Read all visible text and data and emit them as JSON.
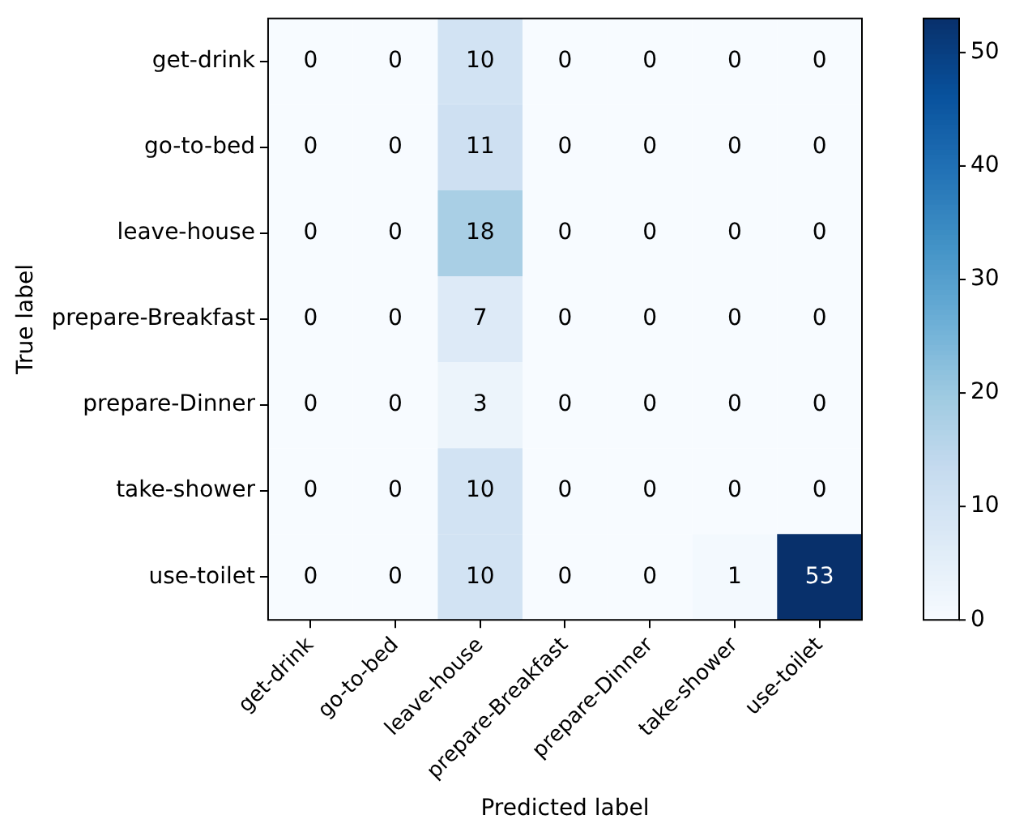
{
  "chart_data": {
    "type": "heatmap",
    "xlabel": "Predicted label",
    "ylabel": "True label",
    "categories": [
      "get-drink",
      "go-to-bed",
      "leave-house",
      "prepare-Breakfast",
      "prepare-Dinner",
      "take-shower",
      "use-toilet"
    ],
    "y_categories": [
      "get-drink",
      "go-to-bed",
      "leave-house",
      "prepare-Breakfast",
      "prepare-Dinner",
      "take-shower",
      "use-toilet"
    ],
    "cells": [
      [
        0,
        0,
        10,
        0,
        0,
        0,
        0
      ],
      [
        0,
        0,
        11,
        0,
        0,
        0,
        0
      ],
      [
        0,
        0,
        18,
        0,
        0,
        0,
        0
      ],
      [
        0,
        0,
        7,
        0,
        0,
        0,
        0
      ],
      [
        0,
        0,
        3,
        0,
        0,
        0,
        0
      ],
      [
        0,
        0,
        10,
        0,
        0,
        0,
        0
      ],
      [
        0,
        0,
        10,
        0,
        0,
        1,
        53
      ]
    ],
    "clim": [
      0,
      53
    ],
    "cticks": [
      0,
      10,
      20,
      30,
      40,
      50
    ],
    "data_labels": true
  }
}
